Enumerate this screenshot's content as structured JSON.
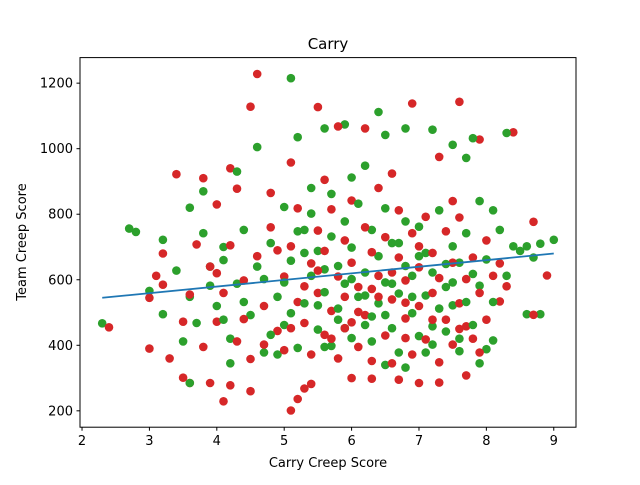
{
  "chart_data": {
    "type": "scatter",
    "title": "Carry",
    "xlabel": "Carry Creep Score",
    "ylabel": "Team Creep Score",
    "xlim": [
      1.97,
      9.33
    ],
    "ylim": [
      150,
      1278
    ],
    "xticks": [
      2,
      3,
      4,
      5,
      6,
      7,
      8,
      9
    ],
    "yticks": [
      200,
      400,
      600,
      800,
      1000,
      1200
    ],
    "grid": false,
    "legend": "none",
    "colors": {
      "red": "#d62728",
      "green": "#2ca02c",
      "trend": "#1f77b4"
    },
    "trendline": {
      "x": [
        2.3,
        9.0
      ],
      "y": [
        545,
        680
      ]
    },
    "series": [
      {
        "color": "red",
        "points": [
          [
            4.6,
            1228
          ],
          [
            5.5,
            1127
          ],
          [
            4.5,
            1128
          ],
          [
            6.9,
            1138
          ],
          [
            7.6,
            1143
          ],
          [
            8.4,
            1050
          ],
          [
            7.9,
            1028
          ],
          [
            7.3,
            975
          ],
          [
            6.2,
            1062
          ],
          [
            5.8,
            1068
          ],
          [
            5.1,
            958
          ],
          [
            4.2,
            940
          ],
          [
            3.4,
            922
          ],
          [
            3.8,
            910
          ],
          [
            4.0,
            830
          ],
          [
            4.3,
            878
          ],
          [
            2.4,
            455
          ],
          [
            3.0,
            390
          ],
          [
            3.5,
            301
          ],
          [
            3.6,
            285
          ],
          [
            3.9,
            285
          ],
          [
            4.1,
            229
          ],
          [
            4.2,
            278
          ],
          [
            4.5,
            260
          ],
          [
            5.1,
            201
          ],
          [
            5.2,
            236
          ],
          [
            5.3,
            268
          ],
          [
            5.4,
            282
          ],
          [
            6.0,
            300
          ],
          [
            6.3,
            298
          ],
          [
            6.7,
            295
          ],
          [
            7.0,
            285
          ],
          [
            7.3,
            286
          ],
          [
            7.7,
            308
          ],
          [
            8.7,
            777
          ],
          [
            8.9,
            613
          ],
          [
            8.7,
            493
          ],
          [
            3.1,
            612
          ],
          [
            3.0,
            545
          ],
          [
            3.2,
            680
          ],
          [
            7.5,
            840
          ],
          [
            6.6,
            924
          ],
          [
            5.6,
            905
          ],
          [
            4.8,
            865
          ],
          [
            3.3,
            360
          ],
          [
            6.8,
            422
          ],
          [
            7.9,
            378
          ],
          [
            8.2,
            534
          ],
          [
            3.2,
            585
          ],
          [
            3.7,
            708
          ],
          [
            3.9,
            640
          ],
          [
            4.0,
            472
          ],
          [
            4.1,
            560
          ],
          [
            4.2,
            705
          ],
          [
            4.3,
            412
          ],
          [
            4.4,
            598
          ],
          [
            4.5,
            358
          ],
          [
            4.6,
            672
          ],
          [
            4.7,
            520
          ],
          [
            4.8,
            760
          ],
          [
            4.9,
            444
          ],
          [
            5.0,
            610
          ],
          [
            5.0,
            385
          ],
          [
            5.1,
            702
          ],
          [
            5.2,
            532
          ],
          [
            5.2,
            818
          ],
          [
            5.3,
            468
          ],
          [
            5.4,
            650
          ],
          [
            5.4,
            372
          ],
          [
            5.5,
            750
          ],
          [
            5.5,
            560
          ],
          [
            5.6,
            432
          ],
          [
            5.6,
            688
          ],
          [
            5.7,
            815
          ],
          [
            5.7,
            505
          ],
          [
            5.8,
            610
          ],
          [
            5.8,
            360
          ],
          [
            5.9,
            720
          ],
          [
            5.9,
            548
          ],
          [
            6.0,
            842
          ],
          [
            6.0,
            470
          ],
          [
            6.0,
            652
          ],
          [
            6.1,
            395
          ],
          [
            6.1,
            578
          ],
          [
            6.2,
            760
          ],
          [
            6.2,
            492
          ],
          [
            6.3,
            684
          ],
          [
            6.3,
            352
          ],
          [
            6.4,
            612
          ],
          [
            6.4,
            880
          ],
          [
            6.5,
            430
          ],
          [
            6.5,
            730
          ],
          [
            6.6,
            540
          ],
          [
            6.6,
            345
          ],
          [
            6.7,
            668
          ],
          [
            6.7,
            812
          ],
          [
            6.8,
            482
          ],
          [
            6.8,
            598
          ],
          [
            6.9,
            372
          ],
          [
            6.9,
            742
          ],
          [
            7.0,
            520
          ],
          [
            7.0,
            638
          ],
          [
            7.1,
            418
          ],
          [
            7.1,
            792
          ],
          [
            7.2,
            560
          ],
          [
            7.2,
            682
          ],
          [
            7.3,
            348
          ],
          [
            7.3,
            605
          ],
          [
            7.4,
            478
          ],
          [
            7.4,
            748
          ],
          [
            7.5,
            402
          ],
          [
            7.5,
            652
          ],
          [
            7.6,
            528
          ],
          [
            7.6,
            790
          ],
          [
            7.7,
            458
          ],
          [
            7.7,
            602
          ],
          [
            7.8,
            668
          ],
          [
            7.8,
            420
          ],
          [
            7.9,
            560
          ],
          [
            8.0,
            720
          ],
          [
            8.0,
            478
          ],
          [
            8.1,
            612
          ],
          [
            8.2,
            650
          ],
          [
            8.3,
            580
          ],
          [
            3.5,
            472
          ],
          [
            3.6,
            555
          ],
          [
            3.8,
            395
          ],
          [
            4.0,
            620
          ],
          [
            4.4,
            480
          ],
          [
            4.7,
            402
          ],
          [
            5.1,
            452
          ],
          [
            5.3,
            580
          ],
          [
            5.7,
            420
          ],
          [
            6.1,
            502
          ],
          [
            6.4,
            548
          ],
          [
            6.8,
            530
          ],
          [
            7.2,
            478
          ],
          [
            7.6,
            450
          ],
          [
            4.9,
            690
          ],
          [
            5.5,
            628
          ],
          [
            6.3,
            572
          ],
          [
            5.9,
            452
          ],
          [
            6.6,
            622
          ],
          [
            7.0,
            702
          ]
        ]
      },
      {
        "color": "green",
        "points": [
          [
            5.1,
            1215
          ],
          [
            6.4,
            1112
          ],
          [
            6.5,
            1042
          ],
          [
            5.9,
            1074
          ],
          [
            5.6,
            1062
          ],
          [
            6.8,
            1062
          ],
          [
            7.2,
            1058
          ],
          [
            7.8,
            1032
          ],
          [
            7.5,
            1012
          ],
          [
            8.3,
            1048
          ],
          [
            4.6,
            1005
          ],
          [
            5.2,
            1035
          ],
          [
            7.7,
            972
          ],
          [
            2.3,
            467
          ],
          [
            2.7,
            756
          ],
          [
            2.8,
            746
          ],
          [
            3.0,
            566
          ],
          [
            3.2,
            722
          ],
          [
            3.6,
            820
          ],
          [
            3.8,
            870
          ],
          [
            3.6,
            285
          ],
          [
            4.2,
            345
          ],
          [
            8.6,
            495
          ],
          [
            8.6,
            702
          ],
          [
            8.7,
            668
          ],
          [
            9.0,
            722
          ],
          [
            8.8,
            710
          ],
          [
            8.8,
            495
          ],
          [
            8.1,
            415
          ],
          [
            8.0,
            388
          ],
          [
            7.9,
            345
          ],
          [
            7.6,
            420
          ],
          [
            6.8,
            332
          ],
          [
            6.5,
            340
          ],
          [
            5.6,
            395
          ],
          [
            4.9,
            372
          ],
          [
            7.1,
            378
          ],
          [
            7.9,
            840
          ],
          [
            8.1,
            812
          ],
          [
            6.2,
            948
          ],
          [
            6.0,
            912
          ],
          [
            5.4,
            880
          ],
          [
            5.7,
            862
          ],
          [
            4.3,
            930
          ],
          [
            3.9,
            640
          ],
          [
            4.1,
            700
          ],
          [
            3.2,
            495
          ],
          [
            3.4,
            628
          ],
          [
            3.6,
            548
          ],
          [
            3.8,
            742
          ],
          [
            4.0,
            520
          ],
          [
            4.1,
            660
          ],
          [
            4.2,
            420
          ],
          [
            4.3,
            588
          ],
          [
            4.4,
            752
          ],
          [
            4.5,
            492
          ],
          [
            4.6,
            640
          ],
          [
            4.7,
            378
          ],
          [
            4.8,
            712
          ],
          [
            4.9,
            548
          ],
          [
            5.0,
            822
          ],
          [
            5.0,
            462
          ],
          [
            5.1,
            658
          ],
          [
            5.2,
            392
          ],
          [
            5.2,
            748
          ],
          [
            5.3,
            528
          ],
          [
            5.4,
            612
          ],
          [
            5.4,
            802
          ],
          [
            5.5,
            448
          ],
          [
            5.5,
            688
          ],
          [
            5.6,
            562
          ],
          [
            5.7,
            732
          ],
          [
            5.7,
            398
          ],
          [
            5.8,
            642
          ],
          [
            5.8,
            512
          ],
          [
            5.9,
            778
          ],
          [
            5.9,
            588
          ],
          [
            6.0,
            422
          ],
          [
            6.0,
            698
          ],
          [
            6.1,
            548
          ],
          [
            6.1,
            832
          ],
          [
            6.2,
            462
          ],
          [
            6.2,
            622
          ],
          [
            6.3,
            752
          ],
          [
            6.3,
            412
          ],
          [
            6.4,
            672
          ],
          [
            6.4,
            528
          ],
          [
            6.5,
            592
          ],
          [
            6.5,
            818
          ],
          [
            6.6,
            452
          ],
          [
            6.6,
            712
          ],
          [
            6.7,
            558
          ],
          [
            6.7,
            378
          ],
          [
            6.8,
            642
          ],
          [
            6.8,
            778
          ],
          [
            6.9,
            498
          ],
          [
            6.9,
            612
          ],
          [
            7.0,
            428
          ],
          [
            7.0,
            762
          ],
          [
            7.1,
            552
          ],
          [
            7.1,
            682
          ],
          [
            7.2,
            402
          ],
          [
            7.2,
            622
          ],
          [
            7.3,
            512
          ],
          [
            7.3,
            812
          ],
          [
            7.4,
            578
          ],
          [
            7.4,
            442
          ],
          [
            7.5,
            702
          ],
          [
            7.5,
            522
          ],
          [
            7.6,
            652
          ],
          [
            7.6,
            382
          ],
          [
            7.7,
            742
          ],
          [
            7.7,
            532
          ],
          [
            7.8,
            618
          ],
          [
            7.8,
            462
          ],
          [
            7.9,
            582
          ],
          [
            8.0,
            662
          ],
          [
            8.1,
            532
          ],
          [
            8.2,
            752
          ],
          [
            8.3,
            612
          ],
          [
            8.4,
            702
          ],
          [
            8.5,
            688
          ],
          [
            3.5,
            412
          ],
          [
            3.7,
            468
          ],
          [
            3.9,
            582
          ],
          [
            4.1,
            478
          ],
          [
            4.4,
            532
          ],
          [
            4.7,
            602
          ],
          [
            5.1,
            498
          ],
          [
            5.3,
            682
          ],
          [
            5.6,
            632
          ],
          [
            5.9,
            452
          ],
          [
            6.2,
            552
          ],
          [
            6.5,
            492
          ],
          [
            6.9,
            548
          ],
          [
            7.2,
            458
          ],
          [
            7.5,
            592
          ],
          [
            5.0,
            592
          ],
          [
            5.5,
            522
          ],
          [
            6.0,
            602
          ],
          [
            6.6,
            588
          ],
          [
            7.0,
            672
          ],
          [
            4.8,
            432
          ],
          [
            5.8,
            478
          ],
          [
            6.3,
            488
          ],
          [
            7.4,
            648
          ],
          [
            5.3,
            752
          ],
          [
            6.7,
            712
          ]
        ]
      }
    ]
  }
}
